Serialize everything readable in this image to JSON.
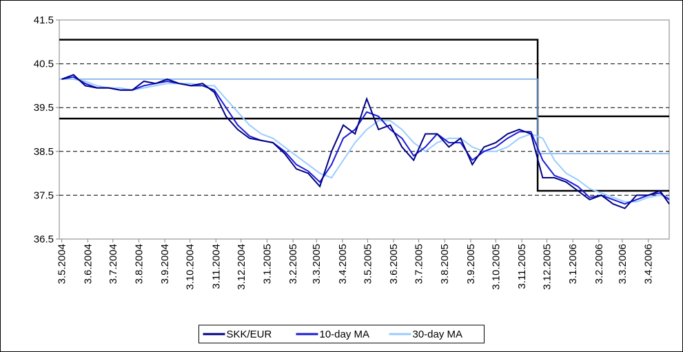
{
  "chart_data": {
    "type": "line",
    "x": [
      "3.5.2004",
      "17.5.2004",
      "31.5.2004",
      "14.6.2004",
      "28.6.2004",
      "12.7.2004",
      "26.7.2004",
      "9.8.2004",
      "23.8.2004",
      "6.9.2004",
      "20.9.2004",
      "4.10.2004",
      "18.10.2004",
      "1.11.2004",
      "15.11.2004",
      "29.11.2004",
      "13.12.2004",
      "27.12.2004",
      "10.1.2005",
      "24.1.2005",
      "7.2.2005",
      "21.2.2005",
      "7.3.2005",
      "21.3.2005",
      "4.4.2005",
      "18.4.2005",
      "2.5.2005",
      "16.5.2005",
      "30.5.2005",
      "13.6.2005",
      "27.6.2005",
      "11.7.2005",
      "25.7.2005",
      "8.8.2005",
      "22.8.2005",
      "5.9.2005",
      "19.9.2005",
      "3.10.2005",
      "17.10.2005",
      "31.10.2005",
      "14.11.2005",
      "28.11.2005",
      "12.12.2005",
      "26.12.2005",
      "9.1.2006",
      "23.1.2006",
      "6.2.2006",
      "20.2.2006",
      "6.3.2006",
      "20.3.2006",
      "3.4.2006",
      "17.4.2006",
      "28.4.2006"
    ],
    "series": [
      {
        "name": "SKK/EUR",
        "color": "#000080",
        "values": [
          40.15,
          40.25,
          40.0,
          39.95,
          39.95,
          39.9,
          39.9,
          40.1,
          40.05,
          40.15,
          40.05,
          40.0,
          40.05,
          39.85,
          39.3,
          39.0,
          38.8,
          38.75,
          38.7,
          38.45,
          38.1,
          38.0,
          37.7,
          38.5,
          39.1,
          38.9,
          39.7,
          39.0,
          39.1,
          38.6,
          38.3,
          38.9,
          38.9,
          38.6,
          38.8,
          38.2,
          38.6,
          38.7,
          38.9,
          39.0,
          38.9,
          37.9,
          37.9,
          37.8,
          37.6,
          37.4,
          37.5,
          37.3,
          37.2,
          37.5,
          37.5,
          37.6,
          37.3
        ]
      },
      {
        "name": "10-day MA",
        "color": "#1a1ad6",
        "values": [
          40.15,
          40.2,
          40.05,
          39.95,
          39.95,
          39.9,
          39.9,
          40.0,
          40.05,
          40.1,
          40.05,
          40.0,
          40.0,
          39.9,
          39.5,
          39.1,
          38.85,
          38.75,
          38.7,
          38.5,
          38.2,
          38.05,
          37.8,
          38.2,
          38.8,
          39.0,
          39.4,
          39.3,
          39.0,
          38.8,
          38.4,
          38.6,
          38.9,
          38.7,
          38.7,
          38.3,
          38.5,
          38.6,
          38.8,
          38.95,
          38.95,
          38.3,
          37.95,
          37.85,
          37.7,
          37.45,
          37.5,
          37.4,
          37.3,
          37.4,
          37.5,
          37.55,
          37.4
        ]
      },
      {
        "name": "30-day MA",
        "color": "#99ccff",
        "values": [
          40.15,
          40.15,
          40.1,
          40.0,
          39.95,
          39.95,
          39.9,
          39.95,
          40.0,
          40.05,
          40.05,
          40.05,
          40.0,
          40.0,
          39.7,
          39.4,
          39.1,
          38.9,
          38.8,
          38.6,
          38.4,
          38.2,
          38.0,
          37.9,
          38.3,
          38.7,
          39.0,
          39.2,
          39.2,
          39.0,
          38.7,
          38.5,
          38.7,
          38.8,
          38.8,
          38.6,
          38.5,
          38.5,
          38.6,
          38.8,
          38.9,
          38.8,
          38.3,
          38.0,
          37.85,
          37.65,
          37.55,
          37.45,
          37.35,
          37.35,
          37.45,
          37.5,
          37.45
        ]
      }
    ],
    "reference_lines": [
      {
        "color": "#000000",
        "x": [
          "30.4.2004",
          "22.11.2005",
          "22.11.2005",
          "28.4.2006"
        ],
        "values": [
          41.05,
          41.05,
          39.3,
          39.3
        ]
      },
      {
        "color": "#000000",
        "x": [
          "30.4.2004",
          "22.11.2005",
          "22.11.2005",
          "28.4.2006"
        ],
        "values": [
          39.25,
          39.25,
          37.6,
          37.6
        ]
      },
      {
        "color": "#6fa8e8",
        "x": [
          "30.4.2004",
          "22.11.2005",
          "22.11.2005",
          "28.4.2006"
        ],
        "values": [
          40.15,
          40.15,
          38.45,
          38.45
        ]
      }
    ],
    "xlim": [
      "30.4.2004",
      "28.4.2006"
    ],
    "xticks": [
      "3.5.2004",
      "3.6.2004",
      "3.7.2004",
      "3.8.2004",
      "3.9.2004",
      "3.10.2004",
      "3.11.2004",
      "3.12.2004",
      "3.1.2005",
      "3.2.2005",
      "3.3.2005",
      "3.4.2005",
      "3.5.2005",
      "3.6.2005",
      "3.7.2005",
      "3.8.2005",
      "3.9.2005",
      "3.10.2005",
      "3.11.2005",
      "3.12.2005",
      "3.1.2006",
      "3.2.2006",
      "3.3.2006",
      "3.4.2006"
    ],
    "ylim": [
      36.5,
      41.5
    ],
    "yticks": [
      36.5,
      37.5,
      38.5,
      39.5,
      40.5,
      41.5
    ],
    "grid": true,
    "legend": "bottom"
  }
}
